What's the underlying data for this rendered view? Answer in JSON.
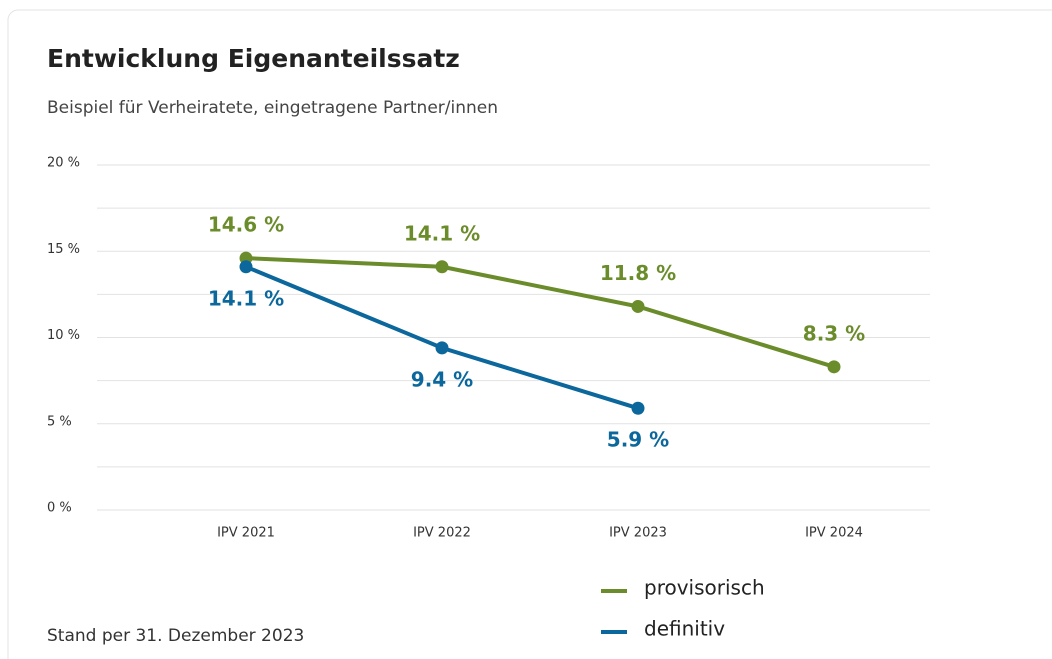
{
  "chart_data": {
    "type": "line",
    "title": "Entwicklung Eigenanteilssatz",
    "subtitle": "Beispiel für Verheiratete, eingetragene Partner/innen",
    "footnote": "Stand per 31. Dezember 2023",
    "categories": [
      "IPV 2021",
      "IPV 2022",
      "IPV 2023",
      "IPV 2024"
    ],
    "series": [
      {
        "name": "provisorisch",
        "color": "#6b8c2a",
        "values": [
          14.6,
          14.1,
          11.8,
          8.3
        ],
        "value_labels": [
          "14.6 %",
          "14.1 %",
          "11.8 %",
          "8.3 %"
        ]
      },
      {
        "name": "definitiv",
        "color": "#0b679c",
        "values": [
          14.1,
          9.4,
          5.9,
          null
        ],
        "value_labels": [
          "14.1 %",
          "9.4 %",
          "5.9 %",
          null
        ]
      }
    ],
    "ylim": [
      0,
      20
    ],
    "yticks": [
      {
        "value": 0,
        "label": "0 %"
      },
      {
        "value": 5,
        "label": "5 %"
      },
      {
        "value": 10,
        "label": "10 %"
      },
      {
        "value": 15,
        "label": "15 %"
      },
      {
        "value": 20,
        "label": "20 %"
      }
    ],
    "grid": true,
    "legend": "bottom"
  }
}
